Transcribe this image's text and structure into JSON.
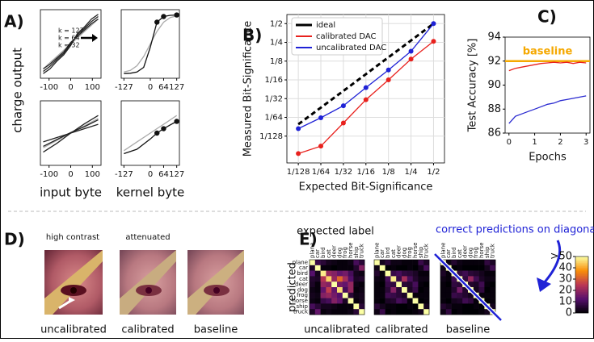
{
  "figure": {
    "panel_labels": [
      "A)",
      "B)",
      "C)",
      "D)",
      "E)"
    ],
    "panel_a_ylabel": "charge output",
    "d_top_labels": [
      "high contrast",
      "attenuated"
    ],
    "d_bottom_labels": [
      "uncalibrated",
      "calibrated",
      "baseline"
    ],
    "expected_label": "expected label",
    "predicted_label": "predicted",
    "diagonal_note": "correct predictions on diagonal",
    "colorbar": {
      "lim": [
        0,
        50
      ],
      "ticks": [
        0,
        10,
        20,
        30,
        40,
        {
          "value": 50,
          "label": ">50"
        }
      ]
    }
  },
  "chart_data": [
    {
      "type": "line",
      "x": [
        -127,
        -96,
        -64,
        -32,
        0,
        32,
        64,
        96,
        127
      ],
      "xlim": [
        -140,
        140
      ],
      "ylim": [
        -1.1,
        1.1
      ],
      "xticks": [
        -100,
        0,
        100
      ],
      "annotations": [
        "k = 127",
        "k = 64",
        "k = 32"
      ],
      "series": [
        {
          "color": "#aaaaaa",
          "values": [
            -0.8,
            -0.6,
            -0.4,
            -0.2,
            0,
            0.2,
            0.4,
            0.6,
            0.8
          ]
        },
        {
          "color": "#222222",
          "values": [
            -0.95,
            -0.8,
            -0.55,
            -0.35,
            -0.05,
            0.35,
            0.55,
            0.8,
            0.95
          ]
        },
        {
          "color": "#222222",
          "values": [
            -0.88,
            -0.72,
            -0.5,
            -0.3,
            0,
            0.3,
            0.5,
            0.72,
            0.88
          ]
        },
        {
          "color": "#222222",
          "values": [
            -0.8,
            -0.65,
            -0.45,
            -0.25,
            0.05,
            0.25,
            0.45,
            0.65,
            0.8
          ]
        }
      ]
    },
    {
      "type": "line",
      "x": [
        -127,
        -96,
        -64,
        -32,
        0,
        32,
        64,
        96,
        127
      ],
      "xlim": [
        -140,
        140
      ],
      "ylim": [
        -1.1,
        1.1
      ],
      "xticks": [
        -127,
        0,
        64,
        127
      ],
      "series": [
        {
          "color": "#aaaaaa",
          "values": [
            -0.9,
            -0.85,
            -0.7,
            -0.4,
            0,
            0.4,
            0.7,
            0.85,
            0.9
          ]
        },
        {
          "color": "#111111",
          "values": [
            -0.95,
            -0.94,
            -0.9,
            -0.75,
            -0.1,
            0.7,
            0.88,
            0.92,
            0.93
          ]
        },
        {
          "color": "#111111",
          "markers": true,
          "x": [
            32,
            64,
            127
          ],
          "values": [
            0.7,
            0.88,
            0.93
          ]
        }
      ]
    },
    {
      "type": "line",
      "x": [
        -127,
        -64,
        0,
        64,
        127
      ],
      "xlim": [
        -140,
        140
      ],
      "ylim": [
        -1.1,
        1.1
      ],
      "xticks": [
        -100,
        0,
        100
      ],
      "xlabel": "input byte",
      "series": [
        {
          "color": "#aaaaaa",
          "values": [
            -0.5,
            -0.25,
            0,
            0.25,
            0.5
          ]
        },
        {
          "color": "#222222",
          "values": [
            -0.65,
            -0.35,
            0,
            0.32,
            0.6
          ]
        },
        {
          "color": "#222222",
          "values": [
            -0.45,
            -0.22,
            0.02,
            0.22,
            0.45
          ]
        },
        {
          "color": "#222222",
          "values": [
            -0.3,
            -0.15,
            0,
            0.15,
            0.3
          ]
        }
      ]
    },
    {
      "type": "line",
      "x": [
        -127,
        -64,
        0,
        32,
        64,
        96,
        127
      ],
      "xlim": [
        -140,
        140
      ],
      "ylim": [
        -1.1,
        1.1
      ],
      "xticks": [
        -127,
        0,
        64,
        127
      ],
      "xlabel": "kernel byte",
      "series": [
        {
          "color": "#aaaaaa",
          "values": [
            -0.6,
            -0.3,
            0,
            0.15,
            0.3,
            0.45,
            0.6
          ]
        },
        {
          "color": "#111111",
          "values": [
            -0.7,
            -0.55,
            -0.2,
            0,
            0.15,
            0.28,
            0.4
          ]
        },
        {
          "color": "#111111",
          "markers": true,
          "x": [
            32,
            64,
            127
          ],
          "values": [
            0,
            0.15,
            0.4
          ]
        }
      ]
    },
    {
      "type": "line",
      "log_scale": true,
      "grid": true,
      "legend": "upper left",
      "xlabel": "Expected Bit-Significance",
      "ylabel": "Measured Bit-Significance",
      "x": [
        0.0078125,
        0.015625,
        0.03125,
        0.0625,
        0.125,
        0.25,
        0.5
      ],
      "xlim": [
        0.0055,
        0.7
      ],
      "ylim": [
        0.0029,
        0.7
      ],
      "xticks": [
        {
          "value": 0.0078125,
          "label": "1/128"
        },
        {
          "value": 0.015625,
          "label": "1/64"
        },
        {
          "value": 0.03125,
          "label": "1/32"
        },
        {
          "value": 0.0625,
          "label": "1/16"
        },
        {
          "value": 0.125,
          "label": "1/8"
        },
        {
          "value": 0.25,
          "label": "1/4"
        },
        {
          "value": 0.5,
          "label": "1/2"
        }
      ],
      "yticks": [
        {
          "value": 0.0078125,
          "label": "1/128"
        },
        {
          "value": 0.015625,
          "label": "1/64"
        },
        {
          "value": 0.03125,
          "label": "1/32"
        },
        {
          "value": 0.0625,
          "label": "1/16"
        },
        {
          "value": 0.125,
          "label": "1/8"
        },
        {
          "value": 0.25,
          "label": "1/4"
        },
        {
          "value": 0.5,
          "label": "1/2"
        }
      ],
      "series": [
        {
          "name": "ideal",
          "color": "#000000",
          "dash": true,
          "values": [
            0.0121,
            0.0224,
            0.0416,
            0.0774,
            0.144,
            0.268,
            0.5
          ]
        },
        {
          "name": "calibrated DAC",
          "color": "#e8211d",
          "markers": true,
          "values": [
            0.0041,
            0.0054,
            0.0127,
            0.03,
            0.0625,
            0.135,
            0.26
          ]
        },
        {
          "name": "uncalibrated DAC",
          "color": "#1f22d6",
          "markers": true,
          "values": [
            0.0103,
            0.0154,
            0.024,
            0.047,
            0.09,
            0.18,
            0.5
          ]
        }
      ]
    },
    {
      "type": "line",
      "xlabel": "Epochs",
      "ylabel": "Test Accuracy [%]",
      "x": [
        0,
        0.25,
        0.5,
        0.75,
        1,
        1.25,
        1.5,
        1.75,
        2,
        2.25,
        2.5,
        2.75,
        3
      ],
      "xlim": [
        -0.15,
        3.15
      ],
      "ylim": [
        86,
        94
      ],
      "xticks": [
        0,
        1,
        2,
        3
      ],
      "yticks": [
        86,
        88,
        90,
        92,
        94
      ],
      "baseline": {
        "value": 92,
        "label": "baseline",
        "color": "#f5a800"
      },
      "series": [
        {
          "color": "#e8211d",
          "values": [
            91.2,
            91.4,
            91.5,
            91.6,
            91.7,
            91.8,
            91.85,
            91.9,
            91.85,
            91.9,
            91.8,
            91.9,
            91.85
          ]
        },
        {
          "color": "#2a2ad0",
          "values": [
            86.8,
            87.4,
            87.6,
            87.8,
            88.0,
            88.2,
            88.4,
            88.5,
            88.7,
            88.8,
            88.9,
            89.0,
            89.1
          ]
        }
      ]
    },
    {
      "type": "heatmap",
      "title": "uncalibrated",
      "categories": [
        "plane",
        "car",
        "bird",
        "cat",
        "deer",
        "dog",
        "frog",
        "horse",
        "ship",
        "truck"
      ],
      "values": [
        [
          55,
          8,
          6,
          3,
          2,
          1,
          1,
          2,
          10,
          6
        ],
        [
          4,
          60,
          1,
          1,
          0,
          1,
          1,
          1,
          5,
          18
        ],
        [
          12,
          3,
          48,
          20,
          18,
          14,
          16,
          10,
          3,
          2
        ],
        [
          5,
          4,
          24,
          45,
          20,
          32,
          22,
          12,
          4,
          5
        ],
        [
          4,
          1,
          20,
          18,
          50,
          16,
          14,
          20,
          2,
          1
        ],
        [
          2,
          1,
          14,
          26,
          14,
          46,
          10,
          20,
          1,
          2
        ],
        [
          3,
          2,
          18,
          20,
          16,
          12,
          58,
          6,
          2,
          3
        ],
        [
          2,
          1,
          8,
          10,
          18,
          14,
          4,
          55,
          1,
          3
        ],
        [
          10,
          6,
          3,
          3,
          2,
          1,
          1,
          1,
          60,
          6
        ],
        [
          4,
          14,
          1,
          2,
          1,
          1,
          1,
          2,
          6,
          58
        ]
      ]
    },
    {
      "type": "heatmap",
      "title": "calibrated",
      "categories": [
        "plane",
        "car",
        "bird",
        "cat",
        "deer",
        "dog",
        "frog",
        "horse",
        "ship",
        "truck"
      ],
      "values": [
        [
          60,
          3,
          6,
          2,
          2,
          1,
          1,
          1,
          8,
          4
        ],
        [
          2,
          62,
          0,
          1,
          0,
          0,
          1,
          0,
          3,
          10
        ],
        [
          5,
          1,
          52,
          8,
          10,
          7,
          6,
          4,
          1,
          1
        ],
        [
          2,
          1,
          10,
          48,
          8,
          22,
          10,
          5,
          2,
          2
        ],
        [
          1,
          0,
          8,
          7,
          55,
          6,
          5,
          10,
          1,
          0
        ],
        [
          1,
          1,
          6,
          18,
          6,
          52,
          4,
          8,
          0,
          1
        ],
        [
          1,
          1,
          9,
          8,
          6,
          4,
          62,
          1,
          1,
          1
        ],
        [
          1,
          0,
          4,
          5,
          10,
          8,
          1,
          60,
          0,
          1
        ],
        [
          6,
          3,
          1,
          1,
          0,
          0,
          1,
          0,
          62,
          3
        ],
        [
          2,
          8,
          0,
          1,
          0,
          0,
          0,
          1,
          3,
          60
        ]
      ]
    },
    {
      "type": "heatmap",
      "title": "baseline",
      "categories": [
        "plane",
        "car",
        "bird",
        "cat",
        "deer",
        "dog",
        "frog",
        "horse",
        "ship",
        "truck"
      ],
      "values": [
        [
          62,
          2,
          5,
          2,
          1,
          1,
          1,
          1,
          7,
          4
        ],
        [
          2,
          64,
          0,
          1,
          0,
          0,
          0,
          0,
          3,
          9
        ],
        [
          4,
          1,
          54,
          7,
          9,
          6,
          5,
          3,
          1,
          1
        ],
        [
          2,
          1,
          9,
          50,
          7,
          20,
          9,
          4,
          2,
          2
        ],
        [
          1,
          0,
          7,
          6,
          57,
          5,
          4,
          9,
          1,
          0
        ],
        [
          1,
          1,
          5,
          16,
          5,
          55,
          3,
          7,
          0,
          1
        ],
        [
          1,
          1,
          8,
          7,
          5,
          3,
          63,
          1,
          1,
          1
        ],
        [
          1,
          0,
          3,
          4,
          9,
          7,
          1,
          62,
          0,
          1
        ],
        [
          5,
          3,
          1,
          1,
          0,
          0,
          1,
          0,
          64,
          3
        ],
        [
          2,
          7,
          0,
          1,
          0,
          0,
          0,
          1,
          3,
          62
        ]
      ]
    }
  ]
}
